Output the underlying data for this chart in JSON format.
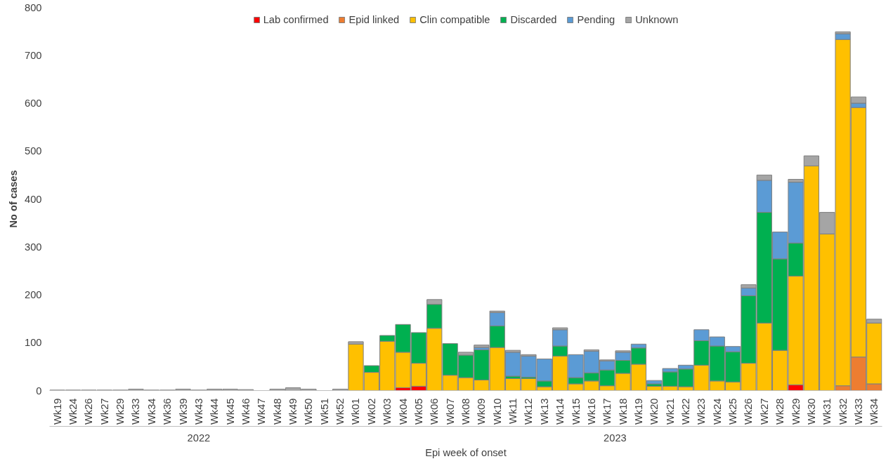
{
  "chart_data": {
    "type": "bar",
    "stacked": true,
    "xlabel": "Epi week of onset",
    "ylabel": "No of cases",
    "categories": [
      "Wk19",
      "Wk24",
      "Wk26",
      "Wk27",
      "Wk29",
      "Wk33",
      "Wk34",
      "Wk36",
      "Wk39",
      "Wk43",
      "Wk44",
      "Wk45",
      "Wk46",
      "Wk47",
      "Wk48",
      "Wk49",
      "Wk50",
      "Wk51",
      "Wk52",
      "Wk01",
      "Wk02",
      "Wk03",
      "Wk04",
      "Wk05",
      "Wk06",
      "Wk07",
      "Wk08",
      "Wk09",
      "Wk10",
      "Wk11",
      "Wk12",
      "Wk13",
      "Wk14",
      "Wk15",
      "Wk16",
      "Wk17",
      "Wk18",
      "Wk19",
      "Wk20",
      "Wk21",
      "Wk22",
      "Wk23",
      "Wk24",
      "Wk25",
      "Wk26",
      "Wk27",
      "Wk28",
      "Wk29",
      "Wk30",
      "Wk31",
      "Wk32",
      "Wk33",
      "Wk34"
    ],
    "series": [
      {
        "name": "Lab confirmed",
        "color": "#ff0000",
        "values": [
          0,
          0,
          0,
          0,
          0,
          0,
          0,
          0,
          0,
          0,
          0,
          0,
          0,
          0,
          0,
          0,
          0,
          0,
          0,
          0,
          0,
          0,
          6,
          9,
          0,
          0,
          0,
          0,
          0,
          0,
          0,
          0,
          0,
          0,
          0,
          0,
          0,
          0,
          0,
          0,
          0,
          0,
          0,
          0,
          0,
          0,
          0,
          12,
          0,
          0,
          0,
          0,
          0
        ]
      },
      {
        "name": "Epid linked",
        "color": "#ed7d31",
        "values": [
          0,
          0,
          0,
          0,
          0,
          0,
          0,
          0,
          0,
          0,
          0,
          0,
          0,
          0,
          0,
          0,
          0,
          0,
          0,
          0,
          0,
          0,
          0,
          0,
          0,
          0,
          0,
          0,
          0,
          0,
          0,
          0,
          0,
          0,
          0,
          0,
          0,
          0,
          0,
          0,
          0,
          0,
          0,
          0,
          0,
          0,
          0,
          0,
          0,
          0,
          10,
          70,
          14
        ]
      },
      {
        "name": "Clin compatible",
        "color": "#ffc000",
        "values": [
          0,
          0,
          0,
          0,
          0,
          0,
          0,
          0,
          0,
          0,
          0,
          0,
          0,
          0,
          0,
          0,
          0,
          0,
          0,
          97,
          38,
          103,
          74,
          48,
          130,
          32,
          27,
          22,
          90,
          25,
          25,
          8,
          72,
          14,
          20,
          10,
          36,
          55,
          9,
          9,
          8,
          53,
          20,
          18,
          57,
          141,
          84,
          227,
          469,
          327,
          723,
          521,
          127
        ]
      },
      {
        "name": "Discarded",
        "color": "#00b050",
        "values": [
          0,
          0,
          0,
          0,
          0,
          0,
          0,
          0,
          0,
          0,
          0,
          0,
          0,
          0,
          0,
          0,
          0,
          0,
          0,
          0,
          14,
          12,
          58,
          64,
          50,
          66,
          47,
          63,
          45,
          5,
          3,
          12,
          21,
          13,
          17,
          33,
          27,
          34,
          5,
          30,
          37,
          51,
          73,
          63,
          141,
          231,
          191,
          69,
          0,
          0,
          0,
          0,
          0
        ]
      },
      {
        "name": "Pending",
        "color": "#5b9bd5",
        "values": [
          0,
          0,
          0,
          0,
          0,
          0,
          0,
          0,
          0,
          0,
          0,
          0,
          0,
          0,
          0,
          0,
          0,
          0,
          0,
          0,
          0,
          0,
          0,
          0,
          0,
          0,
          0,
          5,
          28,
          50,
          44,
          46,
          34,
          48,
          45,
          19,
          17,
          8,
          7,
          7,
          8,
          23,
          19,
          11,
          16,
          67,
          56,
          127,
          0,
          0,
          12,
          9,
          0
        ]
      },
      {
        "name": "Unknown",
        "color": "#a5a5a5",
        "values": [
          1,
          1,
          1,
          1,
          1,
          3,
          1,
          1,
          3,
          1,
          3,
          3,
          2,
          0,
          3,
          6,
          3,
          0,
          3,
          5,
          0,
          0,
          0,
          0,
          10,
          0,
          6,
          5,
          3,
          4,
          3,
          0,
          4,
          0,
          3,
          2,
          3,
          0,
          0,
          0,
          0,
          0,
          0,
          0,
          7,
          11,
          0,
          6,
          21,
          45,
          4,
          13,
          8
        ]
      }
    ],
    "ylim": [
      0,
      800
    ],
    "yticks": [
      0,
      100,
      200,
      300,
      400,
      500,
      600,
      700,
      800
    ],
    "grid": false,
    "legend": "top",
    "annotations": [
      "2022",
      "2023"
    ]
  }
}
